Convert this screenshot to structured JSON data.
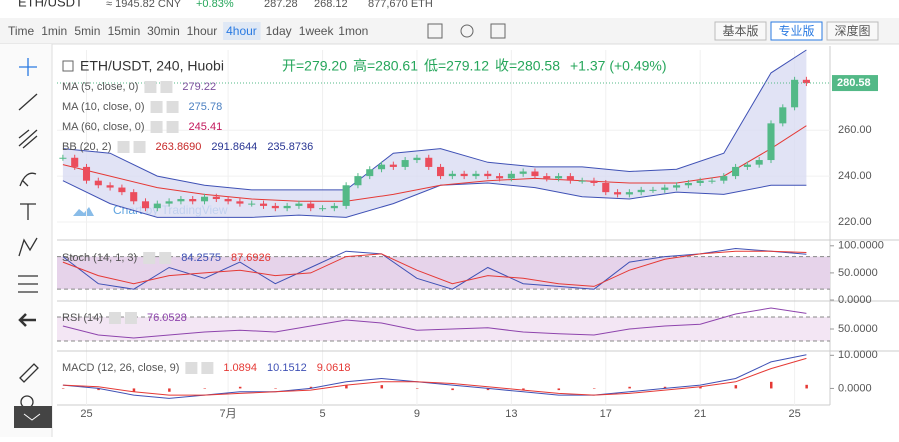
{
  "header": {
    "pair": "ETH/USDT",
    "cny": "≈ 1945.82 CNY",
    "change": "+0.83%",
    "high": "287.28",
    "low": "268.12",
    "volume": "877,670 ETH"
  },
  "toolbar": {
    "intervals": [
      "Time",
      "1min",
      "5min",
      "15min",
      "30min",
      "1hour",
      "4hour",
      "1day",
      "1week",
      "1mon"
    ],
    "selected": "4hour",
    "views": [
      "基本版",
      "专业版",
      "深度图"
    ],
    "active_view": "专业版"
  },
  "chart_data": {
    "type": "candlestick",
    "title": "ETH/USDT, 240, Huobi",
    "ohlc_labels": [
      "开=279.20",
      "高=280.61",
      "低=279.12",
      "收=280.58"
    ],
    "change_label": "+1.37 (+0.49%)",
    "last_price": 280.58,
    "watermark": "Chart by TradingView",
    "xlim": [
      -0.5,
      65
    ],
    "xticks": [
      {
        "value": 2,
        "label": "25"
      },
      {
        "value": 14,
        "label": "7月"
      },
      {
        "value": 22,
        "label": "5"
      },
      {
        "value": 30,
        "label": "9"
      },
      {
        "value": 38,
        "label": "13"
      },
      {
        "value": 46,
        "label": "17"
      },
      {
        "value": 54,
        "label": "21"
      },
      {
        "value": 62,
        "label": "25"
      }
    ],
    "up_color": "#53b987",
    "down_color": "#eb4d5c",
    "main": {
      "ylim": [
        213,
        295
      ],
      "yticks": [
        {
          "value": 220,
          "label": "220.00"
        },
        {
          "value": 240,
          "label": "240.00"
        },
        {
          "value": 260,
          "label": "260.00"
        }
      ],
      "close": [
        248,
        244,
        238,
        236,
        235,
        233,
        229,
        226,
        228,
        229,
        230,
        229,
        231,
        230,
        229,
        228,
        228,
        227,
        226,
        227,
        228,
        226,
        226,
        227,
        236,
        240,
        243,
        245,
        244,
        247,
        248,
        244,
        240,
        241,
        240,
        241,
        240,
        239,
        241,
        242,
        240,
        239,
        240,
        238,
        238,
        237,
        233,
        232,
        233,
        234,
        234,
        235,
        236,
        237,
        238,
        238,
        240,
        244,
        245,
        247,
        263,
        270,
        282,
        280.58
      ],
      "band": {
        "x": [
          0,
          4,
          8,
          12,
          16,
          20,
          24,
          28,
          32,
          36,
          40,
          44,
          48,
          52,
          56,
          60,
          63
        ],
        "upper": [
          252,
          250,
          240,
          236,
          234,
          234,
          234,
          250,
          252,
          246,
          244,
          244,
          242,
          243,
          250,
          285,
          295
        ],
        "lower": [
          238,
          228,
          222,
          222,
          222,
          223,
          222,
          228,
          236,
          237,
          235,
          231,
          230,
          233,
          232,
          236,
          236
        ],
        "color": "#3f51b5",
        "fill": "#d9dcf2"
      },
      "ma": {
        "x": [
          0,
          4,
          8,
          12,
          16,
          20,
          24,
          28,
          32,
          36,
          40,
          44,
          48,
          52,
          56,
          60,
          63
        ],
        "values": [
          245,
          240,
          235,
          232,
          230,
          229,
          229,
          232,
          236,
          238,
          239,
          238,
          237,
          237,
          240,
          252,
          262
        ],
        "color": "#e53935"
      },
      "legend": [
        {
          "label": "MA (5, close, 0)",
          "values": [
            "279.22"
          ],
          "colors": [
            "#7b4f9d"
          ]
        },
        {
          "label": "MA (10, close, 0)",
          "values": [
            "275.78"
          ],
          "colors": [
            "#4a7fc1"
          ]
        },
        {
          "label": "MA (60, close, 0)",
          "values": [
            "245.41"
          ],
          "colors": [
            "#c2185b"
          ]
        },
        {
          "label": "BB (20, 2)",
          "values": [
            "263.8690",
            "291.8644",
            "235.8736"
          ],
          "colors": [
            "#c62828",
            "#283593",
            "#283593"
          ]
        }
      ]
    },
    "panes": [
      {
        "label": "Stoch (14, 1, 3)",
        "ylim": [
          0,
          107
        ],
        "band": [
          20,
          80
        ],
        "band_fill": "#e6d3ea",
        "yticks": [
          {
            "value": 0,
            "label": "0.0000"
          },
          {
            "value": 50,
            "label": "50.0000"
          },
          {
            "value": 100,
            "label": "100.0000"
          }
        ],
        "x": [
          0,
          3,
          6,
          9,
          12,
          15,
          18,
          21,
          24,
          27,
          30,
          33,
          36,
          39,
          42,
          45,
          48,
          51,
          54,
          57,
          60,
          63
        ],
        "series": [
          {
            "color": "#3f51b5",
            "values": [
              80,
              30,
              20,
              60,
              40,
              70,
              30,
              60,
              90,
              85,
              40,
              20,
              60,
              30,
              25,
              20,
              70,
              80,
              85,
              95,
              90,
              84.2575
            ],
            "value_label": "84.2575"
          },
          {
            "color": "#e53935",
            "values": [
              70,
              45,
              30,
              45,
              50,
              55,
              45,
              50,
              80,
              85,
              55,
              30,
              45,
              40,
              30,
              25,
              55,
              75,
              85,
              90,
              90,
              87.6926
            ],
            "value_label": "87.6926"
          }
        ]
      },
      {
        "label": "RSI (14)",
        "ylim": [
          15,
          95
        ],
        "band": [
          30,
          70
        ],
        "band_fill": "#f3e6f4",
        "yticks": [
          {
            "value": 50,
            "label": "50.0000"
          }
        ],
        "x": [
          0,
          3,
          6,
          9,
          12,
          15,
          18,
          21,
          24,
          27,
          30,
          33,
          36,
          39,
          42,
          45,
          48,
          51,
          54,
          57,
          60,
          63
        ],
        "series": [
          {
            "color": "#8e44ad",
            "values": [
              55,
              40,
              35,
              40,
              45,
              48,
              45,
              55,
              65,
              60,
              48,
              50,
              52,
              45,
              42,
              40,
              50,
              55,
              58,
              75,
              85,
              76.0528
            ],
            "value_label": "76.0528"
          }
        ]
      },
      {
        "label": "MACD (12, 26, close, 9)",
        "ylim": [
          -5,
          11
        ],
        "yticks": [
          {
            "value": 0,
            "label": "0.0000"
          },
          {
            "value": 10,
            "label": "10.0000"
          }
        ],
        "x": [
          0,
          3,
          6,
          9,
          12,
          15,
          18,
          21,
          24,
          27,
          30,
          33,
          36,
          39,
          42,
          45,
          48,
          51,
          54,
          57,
          60,
          63
        ],
        "histogram": {
          "color": "#e53935",
          "values": [
            0,
            -0.5,
            -1,
            -1,
            0,
            0.5,
            0,
            0.5,
            1,
            1,
            0,
            -0.5,
            -0.5,
            -0.5,
            -0.5,
            0,
            0.5,
            0.5,
            0.5,
            1,
            2,
            1.0894
          ],
          "value_label": "1.0894"
        },
        "series": [
          {
            "color": "#3f51b5",
            "values": [
              1,
              0,
              -2,
              -3,
              -2,
              -1,
              -1,
              0,
              2,
              3,
              2,
              1,
              0,
              -1,
              -2,
              -2,
              -1,
              0,
              1,
              3,
              8,
              10.1512
            ],
            "value_label": "10.1512"
          },
          {
            "color": "#e53935",
            "values": [
              1,
              0.5,
              -1,
              -2,
              -2,
              -1.5,
              -1,
              -0.5,
              1,
              2,
              2,
              1.5,
              0.5,
              -0.5,
              -1.5,
              -2,
              -1.5,
              -0.5,
              0.5,
              2,
              6,
              9.0618
            ],
            "value_label": "9.0618"
          }
        ]
      }
    ]
  }
}
